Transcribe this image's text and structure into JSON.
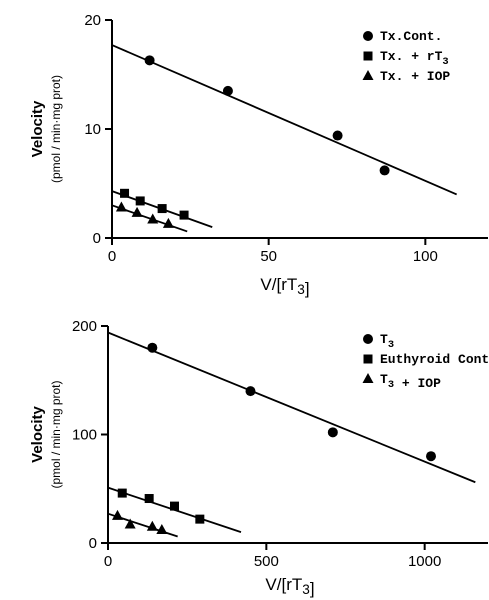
{
  "chart_data": [
    {
      "type": "scatter",
      "title": "",
      "xlabel": "V/[rT3]",
      "ylabel": "Velocity",
      "ylabel_units": "(pmol / min·mg prot)",
      "xlim": [
        0,
        120
      ],
      "ylim": [
        0,
        20
      ],
      "x_ticks": [
        0,
        50,
        100
      ],
      "y_ticks": [
        0,
        10,
        20
      ],
      "legend_position": "top-right",
      "series": [
        {
          "name": "Tx.Cont.",
          "marker": "circle",
          "points": [
            [
              12,
              16.3
            ],
            [
              37,
              13.5
            ],
            [
              72,
              9.4
            ],
            [
              87,
              6.2
            ]
          ],
          "fit": [
            [
              0,
              17.7
            ],
            [
              110,
              4.0
            ]
          ]
        },
        {
          "name": "Tx. + rT3",
          "marker": "square",
          "points": [
            [
              4,
              4.1
            ],
            [
              9,
              3.4
            ],
            [
              16,
              2.7
            ],
            [
              23,
              2.1
            ]
          ],
          "fit": [
            [
              0,
              4.3
            ],
            [
              32,
              1.0
            ]
          ]
        },
        {
          "name": "Tx. + IOP",
          "marker": "triangle",
          "points": [
            [
              3,
              2.8
            ],
            [
              8,
              2.3
            ],
            [
              13,
              1.7
            ],
            [
              18,
              1.3
            ]
          ],
          "fit": [
            [
              0,
              3.0
            ],
            [
              24,
              0.6
            ]
          ]
        }
      ]
    },
    {
      "type": "scatter",
      "title": "",
      "xlabel": "V/[rT3]",
      "ylabel": "Velocity",
      "ylabel_units": "(pmol / min·mg prot)",
      "xlim": [
        0,
        1200
      ],
      "ylim": [
        0,
        200
      ],
      "x_ticks": [
        0,
        500,
        1000
      ],
      "y_ticks": [
        0,
        100,
        200
      ],
      "legend_position": "top-right",
      "series": [
        {
          "name": "T3",
          "marker": "circle",
          "points": [
            [
              140,
              180
            ],
            [
              450,
              140
            ],
            [
              710,
              102
            ],
            [
              1020,
              80
            ]
          ],
          "fit": [
            [
              0,
              194
            ],
            [
              1160,
              56
            ]
          ]
        },
        {
          "name": "Euthyroid Cont.",
          "marker": "square",
          "points": [
            [
              45,
              46
            ],
            [
              130,
              41
            ],
            [
              210,
              34
            ],
            [
              290,
              22
            ]
          ],
          "fit": [
            [
              0,
              51
            ],
            [
              420,
              10
            ]
          ]
        },
        {
          "name": "T3 + IOP",
          "marker": "triangle",
          "points": [
            [
              30,
              25
            ],
            [
              70,
              17
            ],
            [
              140,
              15
            ],
            [
              170,
              12
            ]
          ],
          "fit": [
            [
              0,
              27
            ],
            [
              220,
              6
            ]
          ]
        }
      ]
    }
  ]
}
